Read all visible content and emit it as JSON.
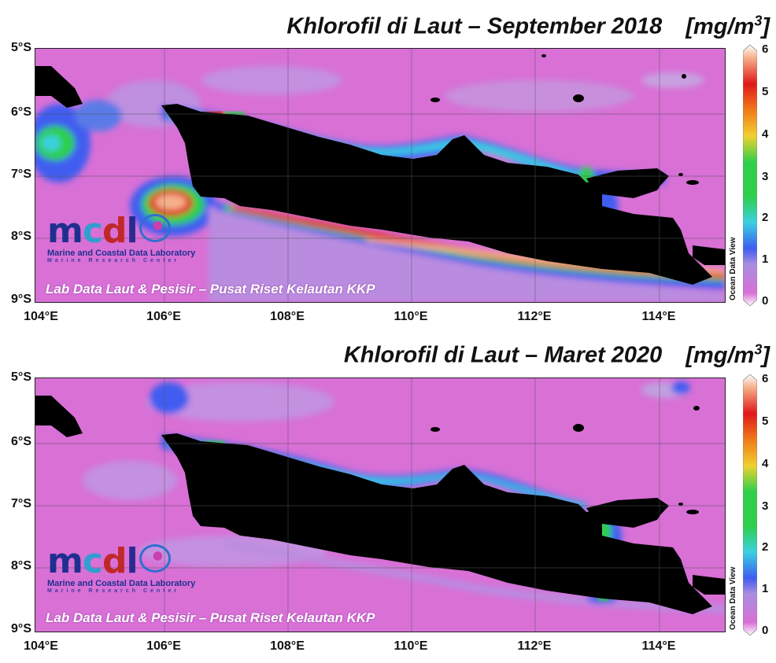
{
  "panels": [
    {
      "title": "Khlorofil di Laut – September 2018",
      "unit_text": "[mg/m",
      "unit_sup": "3",
      "unit_close": "]"
    },
    {
      "title": "Khlorofil di Laut – Maret 2020",
      "unit_text": "[mg/m",
      "unit_sup": "3",
      "unit_close": "]"
    }
  ],
  "axes": {
    "lat_labels": [
      "5°S",
      "6°S",
      "7°S",
      "8°S",
      "9°S"
    ],
    "lon_labels": [
      "104°E",
      "106°E",
      "108°E",
      "110°E",
      "112°E",
      "114°E"
    ]
  },
  "colorbar": {
    "ticks": [
      "6",
      "5",
      "4",
      "3",
      "2",
      "1",
      "0"
    ],
    "range": [
      0,
      6
    ],
    "label": "Ocean Data View",
    "colors": [
      "#d870d6",
      "#b98ce0",
      "#3f5df0",
      "#3ad0e0",
      "#2ecf4a",
      "#f0d030",
      "#f07a1a",
      "#e01818",
      "#ffffff"
    ]
  },
  "logo": {
    "mark": "mcdl",
    "name": "Marine and Coastal Data Laboratory",
    "org": "Marine Research Center",
    "colors": {
      "m": "#1f2f8f",
      "c": "#2f9fd0",
      "d": "#c02828",
      "l": "#2a2a90"
    }
  },
  "caption": "Lab Data Laut & Pesisir – Pusat Riset Kelautan KKP",
  "colors": {
    "sea_low": "#d870d6",
    "land": "#000000"
  }
}
